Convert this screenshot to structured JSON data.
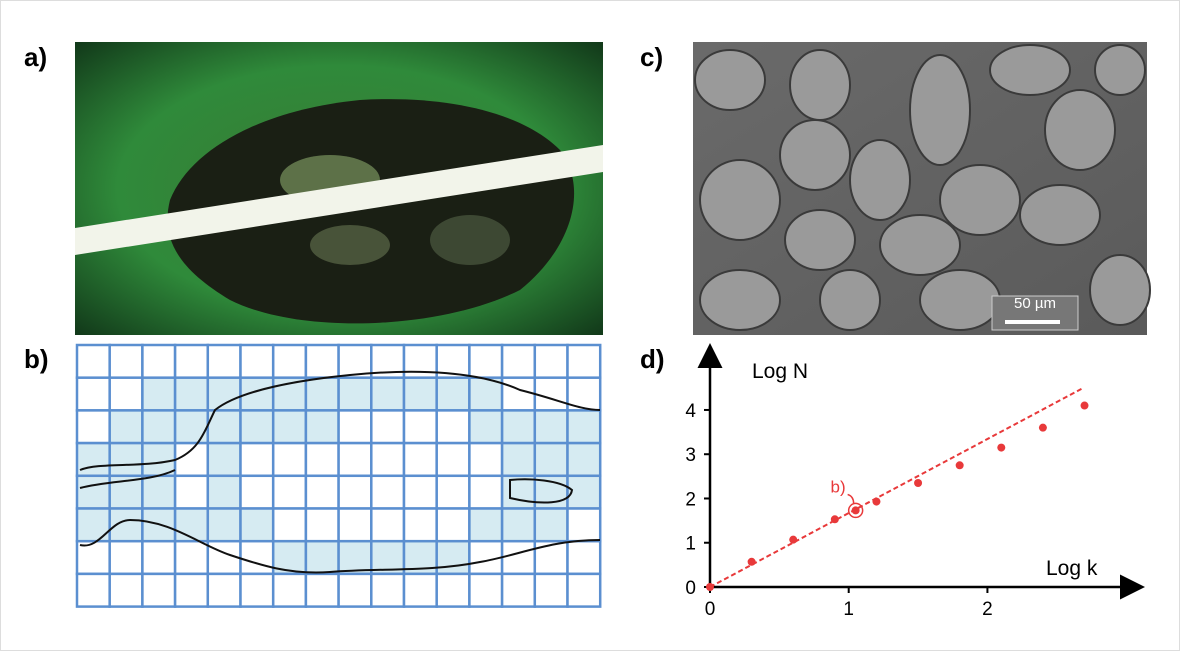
{
  "panels": {
    "a": "a)",
    "b": "b)",
    "c": "c)",
    "d": "d)"
  },
  "scale_bar": "50 µm",
  "chart_data": {
    "type": "scatter",
    "xlabel": "Log k",
    "ylabel": "Log N",
    "x": [
      0,
      0.3,
      0.6,
      0.9,
      1.05,
      1.2,
      1.5,
      1.8,
      2.1,
      2.4,
      2.7
    ],
    "values": [
      0,
      0.57,
      1.07,
      1.53,
      1.73,
      1.93,
      2.35,
      2.75,
      3.15,
      3.6,
      4.1
    ],
    "color": "#e8393a",
    "fit": {
      "x": [
        0,
        2.68
      ],
      "values": [
        0,
        4.48
      ]
    },
    "annotation": {
      "text": "b)",
      "point": 4
    },
    "xlim": [
      0,
      3.1
    ],
    "ylim": [
      0,
      5.4
    ],
    "xticks": [
      0,
      1,
      2
    ],
    "yticks": [
      0,
      1,
      2,
      3,
      4
    ]
  }
}
